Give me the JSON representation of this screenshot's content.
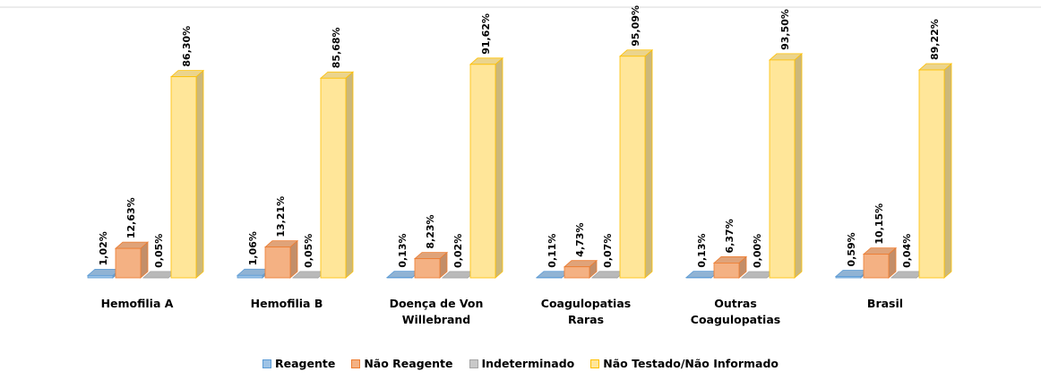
{
  "chart_data": {
    "type": "bar3d",
    "categories": [
      "Hemofilia A",
      "Hemofilia B",
      "Doença de Von Willebrand",
      "Coagulopatias Raras",
      "Outras Coagulopatias",
      "Brasil"
    ],
    "ylim": [
      0,
      100
    ],
    "legend": "bottom",
    "series": [
      {
        "name": "Reagente",
        "color": "#9dc3e6",
        "values": [
          1.02,
          1.06,
          0.13,
          0.11,
          0.13,
          0.59
        ],
        "value_labels": [
          "1,02%",
          "1,06%",
          "0,13%",
          "0,11%",
          "0,13%",
          "0,59%"
        ]
      },
      {
        "name": "Não Reagente",
        "color": "#f4b183",
        "values": [
          12.63,
          13.21,
          8.23,
          4.73,
          6.37,
          10.15
        ],
        "value_labels": [
          "12,63%",
          "13,21%",
          "8,23%",
          "4,73%",
          "6,37%",
          "10,15%"
        ]
      },
      {
        "name": "Indeterminado",
        "color": "#c9c9c9",
        "values": [
          0.05,
          0.05,
          0.02,
          0.07,
          0.0,
          0.04
        ],
        "value_labels": [
          "0,05%",
          "0,05%",
          "0,02%",
          "0,07%",
          "0,00%",
          "0,04%"
        ]
      },
      {
        "name": "Não Testado/Não Informado",
        "color": "#ffe699",
        "values": [
          86.3,
          85.68,
          91.62,
          95.09,
          93.5,
          89.22
        ],
        "value_labels": [
          "86,30%",
          "85,68%",
          "91,62%",
          "95,09%",
          "93,50%",
          "89,22%"
        ]
      }
    ]
  }
}
